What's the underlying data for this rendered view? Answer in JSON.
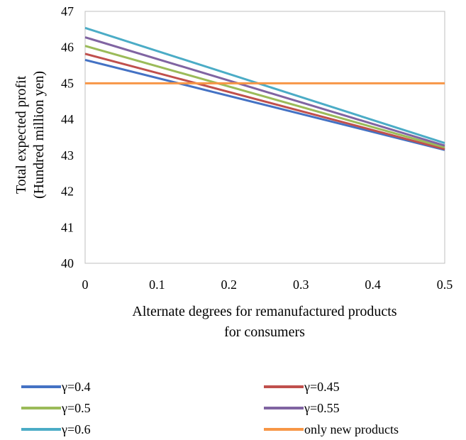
{
  "chart_data": {
    "type": "line",
    "title": "",
    "xlabel": [
      "Alternate degrees for remanufactured products",
      "for consumers"
    ],
    "ylabel": [
      "Total expected profit",
      "(Hundred million yen)"
    ],
    "xlim": [
      0,
      0.5
    ],
    "ylim": [
      40,
      47
    ],
    "xticks": [
      0,
      0.1,
      0.2,
      0.3,
      0.4,
      0.5
    ],
    "yticks": [
      40,
      41,
      42,
      43,
      44,
      45,
      46,
      47
    ],
    "xtick_labels": [
      "0",
      "0.1",
      "0.2",
      "0.3",
      "0.4",
      "0.5"
    ],
    "ytick_labels": [
      "40",
      "41",
      "42",
      "43",
      "44",
      "45",
      "46",
      "47"
    ],
    "grid": false,
    "legend_position": "bottom",
    "series": [
      {
        "name": "γ=0.4",
        "color": "#4472C4",
        "x": [
          0,
          0.5
        ],
        "y": [
          45.65,
          43.15
        ]
      },
      {
        "name": "γ=0.45",
        "color": "#C0504D",
        "x": [
          0,
          0.5
        ],
        "y": [
          45.82,
          43.17
        ]
      },
      {
        "name": "γ=0.5",
        "color": "#9BBB59",
        "x": [
          0,
          0.5
        ],
        "y": [
          46.04,
          43.22
        ]
      },
      {
        "name": "γ=0.55",
        "color": "#8064A2",
        "x": [
          0,
          0.5
        ],
        "y": [
          46.28,
          43.27
        ]
      },
      {
        "name": "γ=0.6",
        "color": "#4BACC6",
        "x": [
          0,
          0.5
        ],
        "y": [
          46.54,
          43.34
        ]
      },
      {
        "name": "only new products",
        "color": "#F79646",
        "x": [
          0,
          0.5
        ],
        "y": [
          45.0,
          45.0
        ]
      }
    ]
  }
}
